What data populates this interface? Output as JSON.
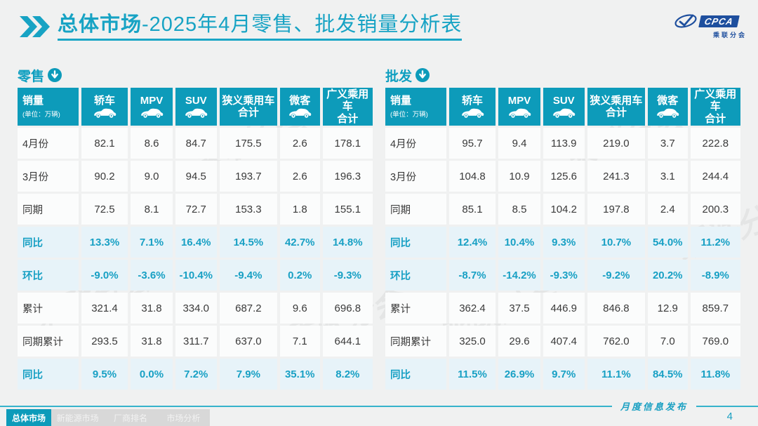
{
  "header": {
    "title_bold": "总体市场",
    "title_rest": "-2025年4月零售、批发销量分析表",
    "logo": {
      "name": "CPCA",
      "sub": "乘联分会"
    }
  },
  "colors": {
    "accent": "#0d9bba",
    "title": "#17a3c4",
    "percent_bg": "#e7f3f9",
    "logo_blue": "#1e4f9e"
  },
  "watermark_text": "乘联分会",
  "tables": {
    "col_widths": [
      17.5,
      14,
      12.5,
      12.5,
      17,
      12,
      14.5
    ],
    "columns": [
      {
        "label": "销量",
        "sub": "(单位：万辆)",
        "icon": ""
      },
      {
        "label": "轿车",
        "sub": "",
        "icon": "sedan-icon"
      },
      {
        "label": "MPV",
        "sub": "",
        "icon": "mpv-icon"
      },
      {
        "label": "SUV",
        "sub": "",
        "icon": "suv-icon"
      },
      {
        "label": "狭义乘用车\n合计",
        "sub": "",
        "icon": ""
      },
      {
        "label": "微客",
        "sub": "",
        "icon": "van-icon"
      },
      {
        "label": "广义乘用车\n合计",
        "sub": "",
        "icon": ""
      }
    ],
    "retail": {
      "section_label": "零售",
      "rows": [
        {
          "label": "4月份",
          "type": "data",
          "values": [
            "82.1",
            "8.6",
            "84.7",
            "175.5",
            "2.6",
            "178.1"
          ]
        },
        {
          "label": "3月份",
          "type": "data",
          "values": [
            "90.2",
            "9.0",
            "94.5",
            "193.7",
            "2.6",
            "196.3"
          ]
        },
        {
          "label": "同期",
          "type": "data",
          "values": [
            "72.5",
            "8.1",
            "72.7",
            "153.3",
            "1.8",
            "155.1"
          ]
        },
        {
          "label": "同比",
          "type": "percent",
          "values": [
            "13.3%",
            "7.1%",
            "16.4%",
            "14.5%",
            "42.7%",
            "14.8%"
          ]
        },
        {
          "label": "环比",
          "type": "percent",
          "values": [
            "-9.0%",
            "-3.6%",
            "-10.4%",
            "-9.4%",
            "0.2%",
            "-9.3%"
          ]
        },
        {
          "label": "累计",
          "type": "data",
          "values": [
            "321.4",
            "31.8",
            "334.0",
            "687.2",
            "9.6",
            "696.8"
          ]
        },
        {
          "label": "同期累计",
          "type": "data",
          "values": [
            "293.5",
            "31.8",
            "311.7",
            "637.0",
            "7.1",
            "644.1"
          ]
        },
        {
          "label": "同比",
          "type": "percent",
          "values": [
            "9.5%",
            "0.0%",
            "7.2%",
            "7.9%",
            "35.1%",
            "8.2%"
          ]
        }
      ]
    },
    "wholesale": {
      "section_label": "批发",
      "rows": [
        {
          "label": "4月份",
          "type": "data",
          "values": [
            "95.7",
            "9.4",
            "113.9",
            "219.0",
            "3.7",
            "222.8"
          ]
        },
        {
          "label": "3月份",
          "type": "data",
          "values": [
            "104.8",
            "10.9",
            "125.6",
            "241.3",
            "3.1",
            "244.4"
          ]
        },
        {
          "label": "同期",
          "type": "data",
          "values": [
            "85.1",
            "8.5",
            "104.2",
            "197.8",
            "2.4",
            "200.3"
          ]
        },
        {
          "label": "同比",
          "type": "percent",
          "values": [
            "12.4%",
            "10.4%",
            "9.3%",
            "10.7%",
            "54.0%",
            "11.2%"
          ]
        },
        {
          "label": "环比",
          "type": "percent",
          "values": [
            "-8.7%",
            "-14.2%",
            "-9.3%",
            "-9.2%",
            "20.2%",
            "-8.9%"
          ]
        },
        {
          "label": "累计",
          "type": "data",
          "values": [
            "362.4",
            "37.5",
            "446.9",
            "846.8",
            "12.9",
            "859.7"
          ]
        },
        {
          "label": "同期累计",
          "type": "data",
          "values": [
            "325.0",
            "29.6",
            "407.4",
            "762.0",
            "7.0",
            "769.0"
          ]
        },
        {
          "label": "同比",
          "type": "percent",
          "values": [
            "11.5%",
            "26.9%",
            "9.7%",
            "11.1%",
            "84.5%",
            "11.8%"
          ]
        }
      ]
    }
  },
  "footer": {
    "publication": "月度信息发布",
    "page": "4",
    "tabs": [
      {
        "label": "总体市场",
        "active": true
      },
      {
        "label": "新能源市场",
        "active": false
      },
      {
        "label": "厂商排名",
        "active": false
      },
      {
        "label": "市场分析",
        "active": false
      }
    ]
  }
}
